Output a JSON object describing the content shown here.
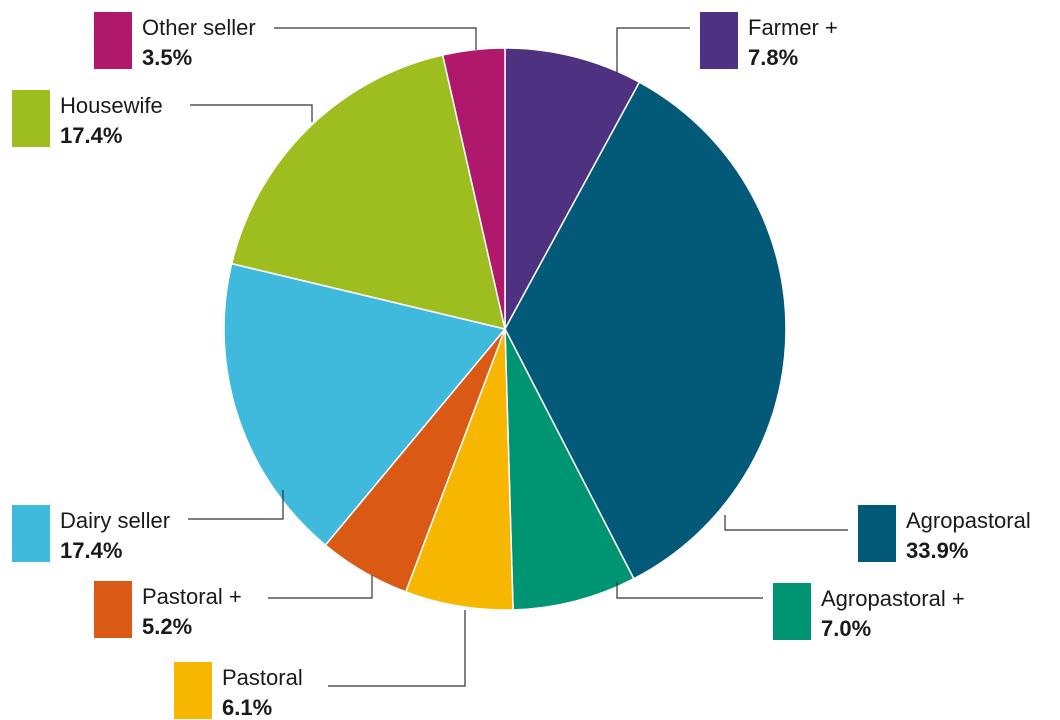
{
  "chart_data": {
    "type": "pie",
    "start_angle_deg": 0,
    "direction": "clockwise",
    "legend": "callout-labels",
    "slices": [
      {
        "label": "Farmer +",
        "value": 7.8,
        "value_label": "7.8%",
        "color": "#4e3180"
      },
      {
        "label": "Agropastoral",
        "value": 33.9,
        "value_label": "33.9%",
        "color": "#025a78"
      },
      {
        "label": "Agropastoral +",
        "value": 7.0,
        "value_label": "7.0%",
        "color": "#009572"
      },
      {
        "label": "Pastoral",
        "value": 6.1,
        "value_label": "6.1%",
        "color": "#f7b600"
      },
      {
        "label": "Pastoral +",
        "value": 5.2,
        "value_label": "5.2%",
        "color": "#da5915"
      },
      {
        "label": "Dairy seller",
        "value": 17.4,
        "value_label": "17.4%",
        "color": "#3fb9dc"
      },
      {
        "label": "Housewife",
        "value": 17.4,
        "value_label": "17.4%",
        "color": "#9ebd1f"
      },
      {
        "label": "Other seller",
        "value": 3.5,
        "value_label": "3.5%",
        "color": "#b0186b"
      }
    ]
  }
}
